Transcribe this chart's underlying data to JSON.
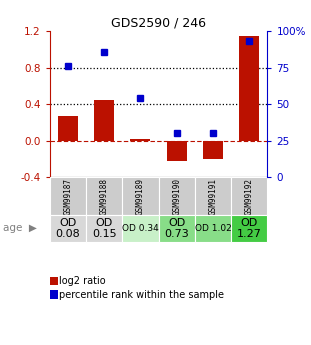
{
  "title": "GDS2590 / 246",
  "samples": [
    "GSM99187",
    "GSM99188",
    "GSM99189",
    "GSM99190",
    "GSM99191",
    "GSM99192"
  ],
  "log2_ratio": [
    0.27,
    0.45,
    0.02,
    -0.22,
    -0.2,
    1.15
  ],
  "percentile_rank": [
    76,
    86,
    54,
    30,
    30,
    93
  ],
  "ylim_left": [
    -0.4,
    1.2
  ],
  "ylim_right": [
    0,
    100
  ],
  "yticks_left": [
    -0.4,
    0.0,
    0.4,
    0.8,
    1.2
  ],
  "yticks_right": [
    0,
    25,
    50,
    75,
    100
  ],
  "hlines_dotted": [
    0.4,
    0.8
  ],
  "bar_color": "#bb1100",
  "dot_color": "#0000cc",
  "zero_line_color": "#bb1100",
  "age_labels": [
    "OD\n0.08",
    "OD\n0.15",
    "OD 0.34",
    "OD\n0.73",
    "OD 1.02",
    "OD\n1.27"
  ],
  "age_font_sizes": [
    8,
    8,
    6.5,
    8,
    6.5,
    8
  ],
  "age_bg_colors": [
    "#d8d8d8",
    "#d8d8d8",
    "#c8f0c8",
    "#88dd88",
    "#88dd88",
    "#44cc44"
  ],
  "gsm_bg_color": "#cccccc",
  "legend_labels": [
    "log2 ratio",
    "percentile rank within the sample"
  ],
  "legend_colors": [
    "#bb1100",
    "#0000cc"
  ],
  "title_fontsize": 9
}
